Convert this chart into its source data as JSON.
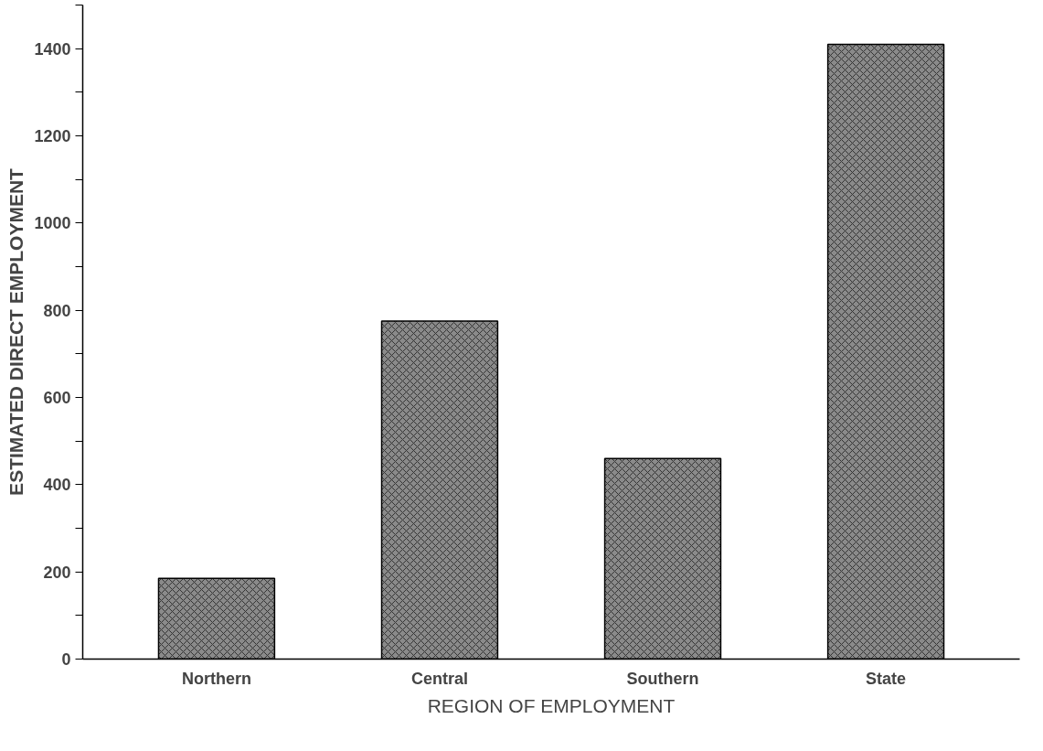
{
  "chart_data": {
    "type": "bar",
    "xlabel": "REGION OF EMPLOYMENT",
    "ylabel": "ESTIMATED DIRECT EMPLOYMENT",
    "categories": [
      "Northern",
      "Central",
      "Southern",
      "State"
    ],
    "values": [
      185,
      775,
      460,
      1410
    ],
    "color": "#8a8a8a",
    "ylim": [
      0,
      1500
    ],
    "yticks": [
      0,
      {
        "value": 100,
        "label": null
      },
      200,
      {
        "value": 300,
        "label": null
      },
      400,
      {
        "value": 500,
        "label": null
      },
      600,
      {
        "value": 700,
        "label": null
      },
      800,
      {
        "value": 900,
        "label": null
      },
      1000,
      {
        "value": 1100,
        "label": null
      },
      1200,
      {
        "value": 1300,
        "label": null
      },
      1400,
      {
        "value": 1500,
        "label": null
      }
    ],
    "grid": false
  }
}
